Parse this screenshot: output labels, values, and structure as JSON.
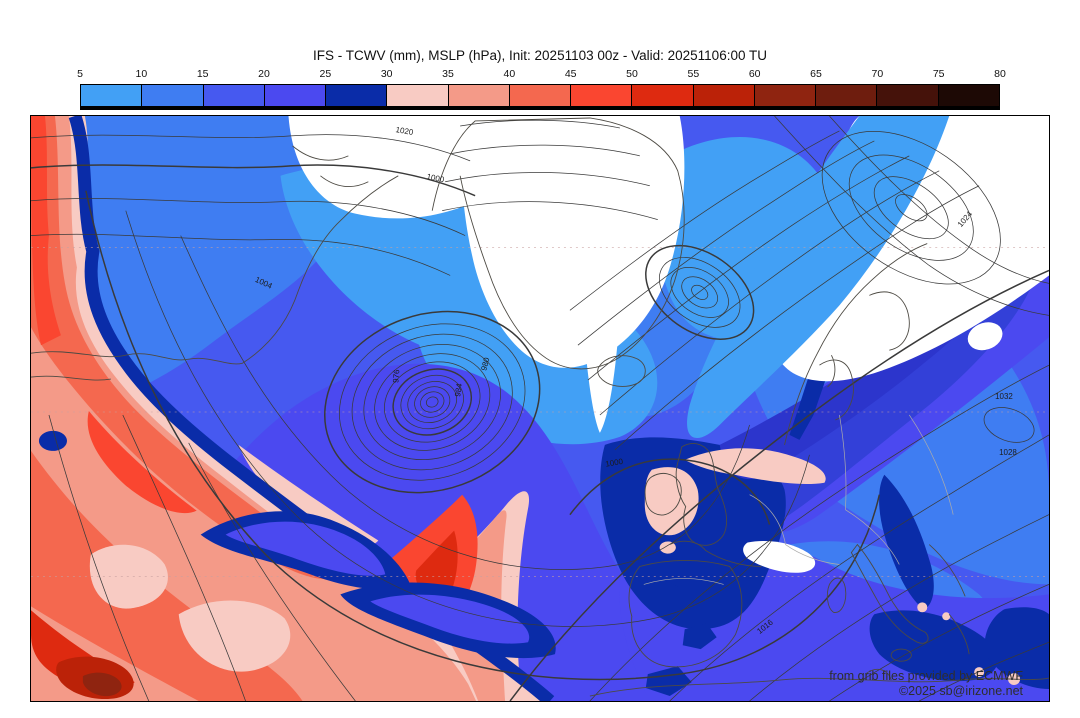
{
  "header": {
    "title": "IFS - TCWV (mm), MSLP (hPa), Init: 20251103 00z - Valid: 20251106:00 TU"
  },
  "colorbar": {
    "unit": "mm",
    "ticks": [
      "5",
      "10",
      "15",
      "20",
      "25",
      "30",
      "35",
      "40",
      "45",
      "50",
      "55",
      "60",
      "65",
      "70",
      "75",
      "80"
    ],
    "segments": [
      {
        "range": "5-10",
        "color": "#42a0f5"
      },
      {
        "range": "10-15",
        "color": "#3f7df2"
      },
      {
        "range": "15-20",
        "color": "#4659f0"
      },
      {
        "range": "20-25",
        "color": "#4b49f0"
      },
      {
        "range": "25-30",
        "color": "#0a2ca8"
      },
      {
        "range": "30-35",
        "color": "#f8cbc3"
      },
      {
        "range": "35-40",
        "color": "#f49a88"
      },
      {
        "range": "40-45",
        "color": "#f4684f"
      },
      {
        "range": "45-50",
        "color": "#fa4630"
      },
      {
        "range": "50-55",
        "color": "#de2a10"
      },
      {
        "range": "55-60",
        "color": "#bb2208"
      },
      {
        "range": "60-65",
        "color": "#8f2410"
      },
      {
        "range": "65-70",
        "color": "#6e1d0e"
      },
      {
        "range": "70-75",
        "color": "#45120a"
      },
      {
        "range": "75-80",
        "color": "#1d0905"
      }
    ]
  },
  "map": {
    "contour_labels": [
      {
        "value": "1020"
      },
      {
        "value": "1000"
      },
      {
        "value": "976"
      },
      {
        "value": "980"
      },
      {
        "value": "984"
      },
      {
        "value": "1000"
      },
      {
        "value": "1004"
      },
      {
        "value": "1016"
      },
      {
        "value": "1024"
      },
      {
        "value": "1032"
      },
      {
        "value": "1028"
      }
    ],
    "attribution_line1": "from grib files provided by ECMWF",
    "attribution_line2": "©2025 sb@irizone.net",
    "extra_colors": {
      "map_white": "#ffffff",
      "indigo_band": "#3340d8",
      "contour": "#3a3a3a",
      "coast": "#4d4a43",
      "border_gray": "#ababab",
      "grid_pink": "#c8a0a0"
    }
  }
}
